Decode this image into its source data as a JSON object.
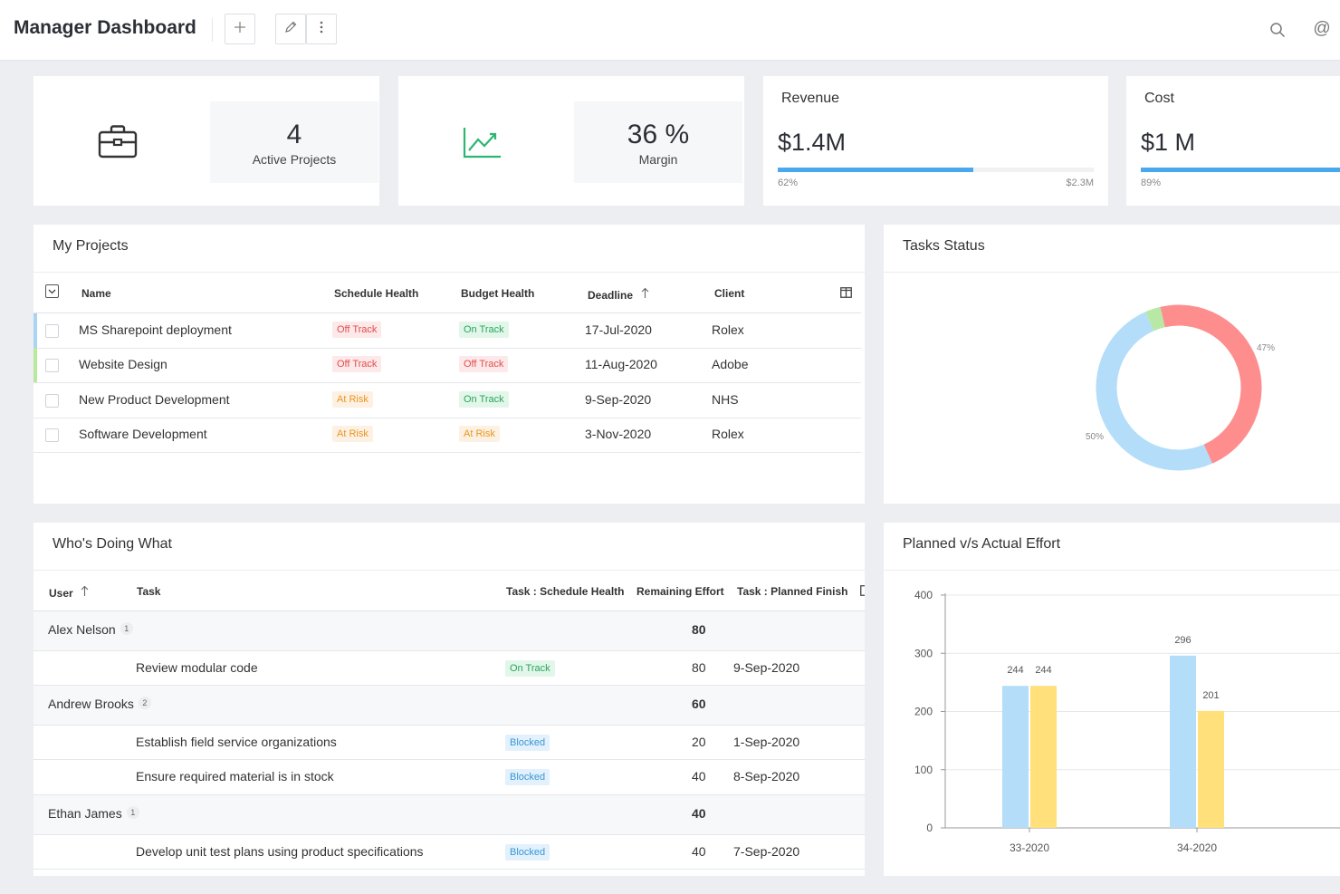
{
  "header": {
    "title": "Manager Dashboard",
    "icons": [
      "plus-icon",
      "pencil-icon",
      "more-vertical-icon",
      "search-icon",
      "at-icon"
    ]
  },
  "kpis": {
    "active_projects": {
      "value": "4",
      "label": "Active Projects",
      "icon": "briefcase-icon"
    },
    "margin": {
      "value": "36 %",
      "label": "Margin",
      "icon": "trending-up-icon"
    },
    "revenue": {
      "title": "Revenue",
      "value": "$1.4M",
      "percent_label": "62%",
      "progress": 0.62,
      "max_label": "$2.3M"
    },
    "cost": {
      "title": "Cost",
      "value": "$1 M",
      "percent_label": "89%",
      "progress": 0.89
    }
  },
  "projects": {
    "title": "My Projects",
    "columns": {
      "name": "Name",
      "schedule": "Schedule Health",
      "budget": "Budget Health",
      "deadline": "Deadline",
      "client": "Client"
    },
    "rows": [
      {
        "name": "MS Sharepoint deployment",
        "schedule": "Off Track",
        "budget": "On Track",
        "deadline": "17-Jul-2020",
        "client": "Rolex",
        "accent": "#a9d4f5"
      },
      {
        "name": "Website Design",
        "schedule": "Off Track",
        "budget": "Off Track",
        "deadline": "11-Aug-2020",
        "client": "Adobe",
        "accent": "#b9ea9c"
      },
      {
        "name": "New Product Development",
        "schedule": "At Risk",
        "budget": "On Track",
        "deadline": "9-Sep-2020",
        "client": "NHS",
        "accent": ""
      },
      {
        "name": "Software Development",
        "schedule": "At Risk",
        "budget": "At Risk",
        "deadline": "3-Nov-2020",
        "client": "Rolex",
        "accent": ""
      }
    ]
  },
  "tasks_status": {
    "title": "Tasks Status",
    "slices": [
      {
        "label": "47%",
        "value": 47,
        "color": "#fe8e8e"
      },
      {
        "label": "50%",
        "value": 50,
        "color": "#b3ddf8"
      },
      {
        "label": "",
        "value": 3,
        "color": "#b8e8a6"
      }
    ]
  },
  "whos_doing_what": {
    "title": "Who's Doing What",
    "columns": {
      "user": "User",
      "task": "Task",
      "schedule": "Task : Schedule Health",
      "effort": "Remaining Effort",
      "finish": "Task : Planned Finish"
    },
    "groups": [
      {
        "user": "Alex Nelson",
        "count": "1",
        "effort": "80",
        "tasks": [
          {
            "task": "Review modular code",
            "health": "On Track",
            "effort": "80",
            "finish": "9-Sep-2020"
          }
        ]
      },
      {
        "user": "Andrew Brooks",
        "count": "2",
        "effort": "60",
        "tasks": [
          {
            "task": "Establish field service organizations",
            "health": "Blocked",
            "effort": "20",
            "finish": "1-Sep-2020"
          },
          {
            "task": "Ensure required material is in stock",
            "health": "Blocked",
            "effort": "40",
            "finish": "8-Sep-2020"
          }
        ]
      },
      {
        "user": "Ethan James",
        "count": "1",
        "effort": "40",
        "tasks": [
          {
            "task": "Develop unit test plans using product specifications",
            "health": "Blocked",
            "effort": "40",
            "finish": "7-Sep-2020"
          }
        ]
      }
    ]
  },
  "effort_chart": {
    "title": "Planned v/s Actual Effort"
  },
  "chart_data": {
    "type": "bar",
    "title": "Planned v/s Actual Effort",
    "categories": [
      "33-2020",
      "34-2020"
    ],
    "series": [
      {
        "values": [
          244,
          296
        ],
        "color": "#b3ddf8"
      },
      {
        "values": [
          244,
          201
        ],
        "color": "#ffe07a"
      }
    ],
    "ylim": [
      0,
      400
    ],
    "yticks": [
      0,
      100,
      200,
      300,
      400
    ],
    "grid": true
  }
}
